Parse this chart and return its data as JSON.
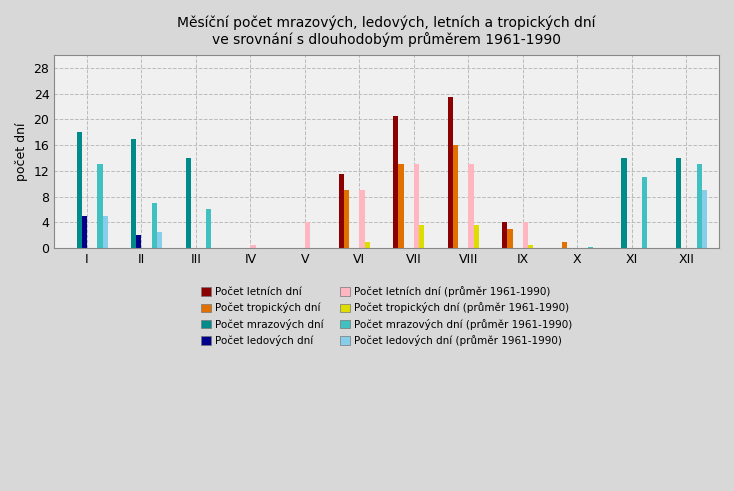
{
  "title": "Měsíční počet mrazových, ledových, letních a tropických dní\nve srovnání s dlouhodobým průměrem 1961-1990",
  "ylabel": "počet dní",
  "months": [
    "I",
    "II",
    "III",
    "IV",
    "V",
    "VI",
    "VII",
    "VIII",
    "IX",
    "X",
    "XI",
    "XII"
  ],
  "letni_dni": [
    0,
    0,
    0,
    0,
    0,
    11.5,
    20.5,
    23.5,
    4,
    0,
    0,
    0
  ],
  "tropicke_dni": [
    0,
    0,
    0,
    0,
    0,
    9,
    13,
    16,
    3,
    1,
    0,
    0
  ],
  "mrazove_dni": [
    18,
    17,
    14,
    0,
    0,
    0,
    0,
    0,
    0,
    0,
    14,
    14
  ],
  "ledove_dni": [
    5,
    2,
    0,
    0,
    0,
    0,
    0,
    0,
    0,
    0,
    0,
    0
  ],
  "letni_prumer": [
    0,
    0,
    0,
    0.5,
    4,
    9,
    13,
    13,
    4,
    0,
    0,
    0
  ],
  "tropicke_prumer": [
    0,
    0,
    0,
    0,
    0,
    1,
    3.5,
    3.5,
    0.5,
    0,
    0,
    0
  ],
  "mrazove_prumer": [
    13,
    7,
    6,
    0,
    0,
    0,
    0,
    0,
    0,
    0.2,
    11,
    13
  ],
  "ledove_prumer": [
    5,
    2.5,
    0,
    0,
    0,
    0,
    0,
    0,
    0,
    0,
    0,
    9
  ],
  "color_letni": "#8B0000",
  "color_tropicke": "#E07000",
  "color_mrazove": "#008B8B",
  "color_ledove": "#00008B",
  "color_letni_p": "#FFB6C1",
  "color_tropicke_p": "#DDDD00",
  "color_mrazove_p": "#40C0C0",
  "color_ledove_p": "#87CEEB",
  "background": "#D8D8D8",
  "plot_bg": "#F0F0F0",
  "ylim": [
    0,
    30
  ],
  "yticks": [
    0,
    4,
    8,
    12,
    16,
    20,
    24,
    28
  ],
  "bar_width": 0.095,
  "grid_color": "#BBBBBB"
}
